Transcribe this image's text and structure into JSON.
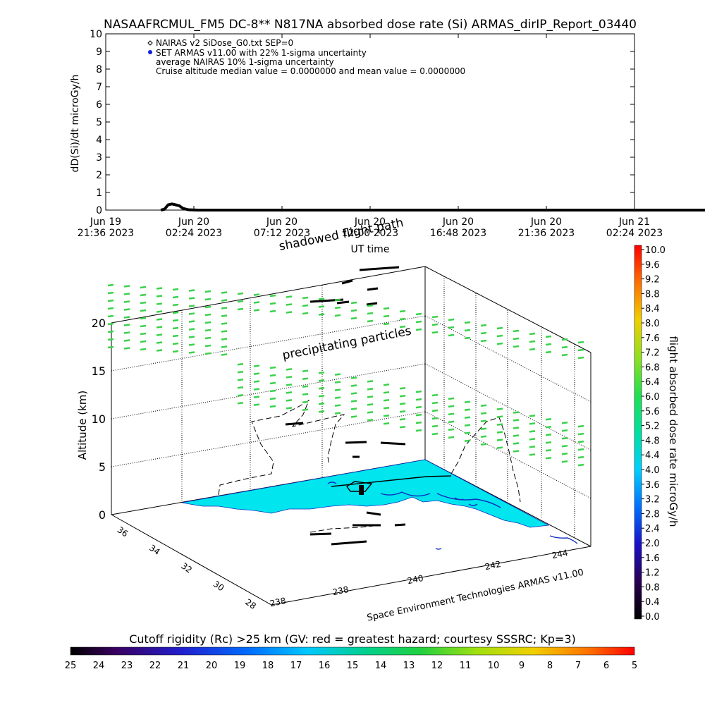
{
  "title": "NASAAFRCMUL_FM5 DC-8** N817NA absorbed dose rate (Si) ARMAS_dirIP_Report_03440",
  "chart_data": [
    {
      "type": "line",
      "ylabel": "dD(Si)/dt microGy/h",
      "xlabel": "UT time",
      "ylim": [
        0,
        10
      ],
      "y_ticks": [
        "0",
        "1",
        "2",
        "3",
        "4",
        "5",
        "6",
        "7",
        "8",
        "9",
        "10"
      ],
      "x_ticks": [
        {
          "line1": "Jun 19",
          "line2": "21:36 2023"
        },
        {
          "line1": "Jun 20",
          "line2": "02:24 2023"
        },
        {
          "line1": "Jun 20",
          "line2": "07:12 2023"
        },
        {
          "line1": "Jun 20",
          "line2": "12:00 2023"
        },
        {
          "line1": "Jun 20",
          "line2": "16:48 2023"
        },
        {
          "line1": "Jun 20",
          "line2": "21:36 2023"
        },
        {
          "line1": "Jun 21",
          "line2": "02:24 2023"
        }
      ],
      "legend": [
        "NAIRAS v2 SiDose_G0.txt SEP=0",
        "SET ARMAS v11.00 with 22% 1-sigma uncertainty",
        "average NAIRAS 10% 1-sigma uncertainty",
        "Cruise altitude median value = 0.0000000 and mean value = 0.0000000"
      ],
      "legend_placement": "top-left",
      "series": [
        {
          "name": "SET ARMAS v11.00",
          "color": "#000000",
          "x_hours": [
            3.0,
            3.2,
            3.4,
            3.6,
            3.8,
            4.0,
            4.2,
            4.5,
            5.0,
            10.0,
            20.0,
            30.0,
            36.5
          ],
          "values": [
            0.0,
            0.05,
            0.3,
            0.35,
            0.3,
            0.25,
            0.1,
            0.02,
            0.0,
            0.0,
            0.0,
            0.0,
            0.0
          ]
        }
      ]
    },
    {
      "type": "scatter",
      "title": "shadowed flight path",
      "annotation": "precipitating particles",
      "zlabel": "Altitude (km)",
      "z_ticks": [
        "0",
        "5",
        "10",
        "15",
        "20"
      ],
      "lat_ticks": [
        "36",
        "34",
        "32",
        "30",
        "28"
      ],
      "lon_ticks": [
        "238",
        "240",
        "242",
        "244"
      ],
      "credit": "Space Environment Technologies ARMAS v11.00",
      "colorbar": {
        "label": "flight absorbed dose rate microGy/h",
        "ticks": [
          "10.0",
          "9.6",
          "9.2",
          "8.8",
          "8.4",
          "8.0",
          "7.6",
          "7.2",
          "6.8",
          "6.4",
          "6.0",
          "5.6",
          "5.2",
          "4.8",
          "4.4",
          "4.0",
          "3.6",
          "3.2",
          "2.8",
          "2.4",
          "2.0",
          "1.6",
          "1.2",
          "0.8",
          "0.4",
          "0.0"
        ]
      },
      "surface_color": "#00e5ee",
      "particle_color": "#3ad24a"
    }
  ],
  "cutoff_bar": {
    "label": "Cutoff rigidity (Rc) >25 km (GV: red = greatest hazard; courtesy SSSRC; Kp=3)",
    "ticks": [
      "25",
      "24",
      "23",
      "22",
      "21",
      "20",
      "19",
      "18",
      "17",
      "16",
      "15",
      "14",
      "13",
      "12",
      "11",
      "10",
      "9",
      "8",
      "7",
      "6",
      "5"
    ]
  }
}
